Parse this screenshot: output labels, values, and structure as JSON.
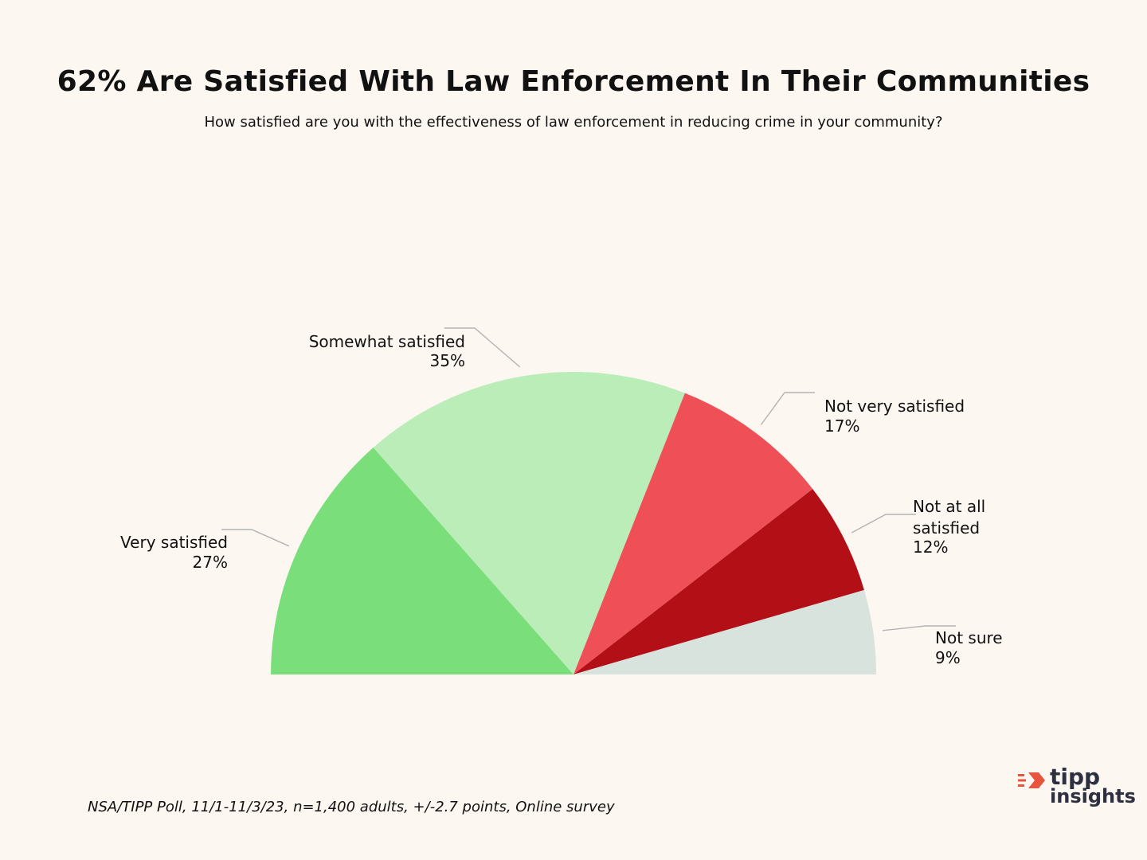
{
  "title": "62% Are Satisfied With Law Enforcement In Their Communities",
  "subtitle": "How satisfied are you with the effectiveness of law enforcement in reducing crime in your community?",
  "source": "NSA/TIPP Poll, 11/1-11/3/23, n=1,400 adults, +/-2.7 points,  Online survey",
  "logo": {
    "line1": "tipp",
    "line2": "insights",
    "accent": "#e8553f",
    "text_color": "#2d3040"
  },
  "chart_data": {
    "type": "pie",
    "variant": "half-donut",
    "title": "62% Are Satisfied With Law Enforcement In Their Communities",
    "categories": [
      "Very satisfied",
      "Somewhat satisfied",
      "Not very satisfied",
      "Not at all satisfied",
      "Not sure"
    ],
    "values": [
      27,
      35,
      17,
      12,
      9
    ],
    "value_labels": [
      "27%",
      "35%",
      "17%",
      "12%",
      "9%"
    ],
    "colors": [
      "#7ade7a",
      "#bbedb9",
      "#ef5058",
      "#b20f17",
      "#d8e3dd"
    ]
  }
}
